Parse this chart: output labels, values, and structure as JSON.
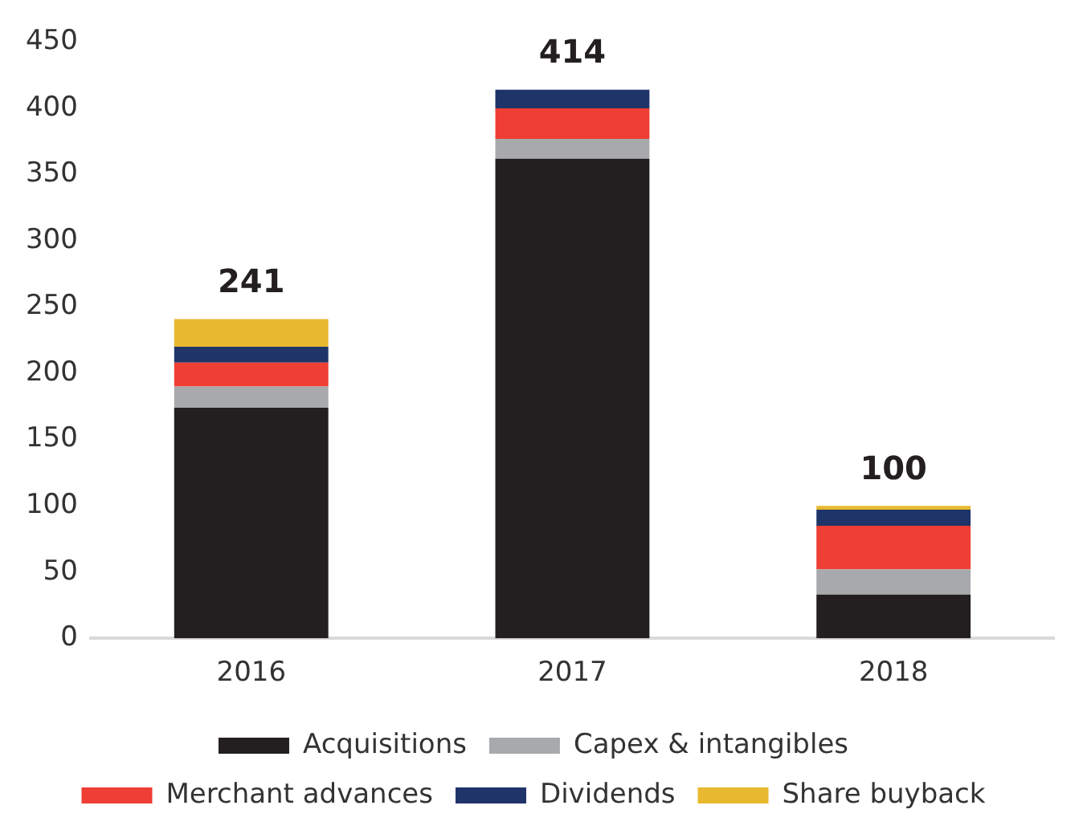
{
  "chart_data": {
    "type": "bar",
    "stacked": true,
    "categories": [
      "2016",
      "2017",
      "2018"
    ],
    "series": [
      {
        "name": "Acquisitions",
        "color": "#231f20",
        "values": [
          174,
          362,
          33
        ]
      },
      {
        "name": "Capex & intangibles",
        "color": "#a7a9ac",
        "values": [
          16,
          15,
          19
        ]
      },
      {
        "name": "Merchant advances",
        "color": "#ef3e33",
        "values": [
          18,
          23,
          33
        ]
      },
      {
        "name": "Dividends",
        "color": "#1f3469",
        "values": [
          12,
          14,
          12
        ]
      },
      {
        "name": "Share buyback",
        "color": "#e8b92f",
        "values": [
          21,
          0,
          3
        ]
      }
    ],
    "totals": [
      "241",
      "414",
      "100"
    ],
    "ylim": [
      0,
      450
    ],
    "yticks": [
      0,
      50,
      100,
      150,
      200,
      250,
      300,
      350,
      400,
      450
    ],
    "grid": false,
    "legend": "bottom"
  }
}
